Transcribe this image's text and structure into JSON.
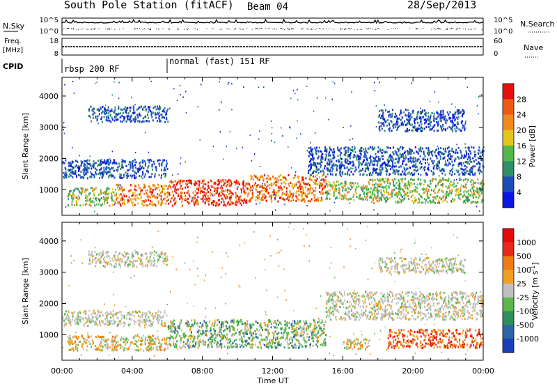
{
  "header": {
    "station_title": "South Pole Station (fitACF)",
    "beam": "Beam 04",
    "date": "28/Sep/2013"
  },
  "params_panel": {
    "left_label_nsky": "N.Sky",
    "left_tick_top": "10^5",
    "left_tick_bottom": "10^0",
    "right_tick_top": "10^5",
    "right_tick_bottom": "10^0",
    "right_label_nsearch": "N.Search",
    "freq_label_line1": "Freq.",
    "freq_label_line2": "[MHz]",
    "freq_tick_top": "18",
    "freq_tick_bottom": "8",
    "nave_tick_top": "60",
    "nave_tick_bottom": "0",
    "right_label_nave": "Nave",
    "cpid_label": "CPID",
    "cpid_segment_1": "rbsp 200 RF",
    "cpid_segment_2": "normal (fast) 151 RF"
  },
  "x_axis": {
    "label": "Time UT",
    "ticks": [
      "00:00",
      "04:00",
      "08:00",
      "12:00",
      "16:00",
      "20:00",
      "00:00"
    ]
  },
  "chart_data": [
    {
      "type": "heatmap",
      "title": "",
      "xlabel": "",
      "ylabel": "Slant Range [km]",
      "x_range_hours": [
        0,
        24
      ],
      "y_ticks": [
        1000,
        2000,
        3000,
        4000
      ],
      "ylim": [
        180,
        4600
      ],
      "colorbar": {
        "label": "Power [dB]",
        "ticks": [
          "4",
          "8",
          "12",
          "16",
          "20",
          "24",
          "28"
        ],
        "colors": [
          "#0a14e6",
          "#1d4db8",
          "#2f8f6a",
          "#52b84a",
          "#e2c51a",
          "#f08a1c",
          "#ee5a12",
          "#e80e0e"
        ]
      },
      "regions": [
        {
          "t0": 0.3,
          "t1": 3.0,
          "r0": 520,
          "r1": 1100,
          "level": "mid"
        },
        {
          "t0": 3.0,
          "t1": 6.0,
          "r0": 520,
          "r1": 1200,
          "level": "high"
        },
        {
          "t0": 6.0,
          "t1": 10.5,
          "r0": 520,
          "r1": 1350,
          "level": "peak"
        },
        {
          "t0": 10.5,
          "t1": 15.0,
          "r0": 650,
          "r1": 1500,
          "level": "high"
        },
        {
          "t0": 15.0,
          "t1": 17.5,
          "r0": 700,
          "r1": 1300,
          "level": "mid"
        },
        {
          "t0": 17.5,
          "t1": 24.0,
          "r0": 600,
          "r1": 1400,
          "level": "mid"
        },
        {
          "t0": 0.0,
          "t1": 6.0,
          "r0": 1400,
          "r1": 2000,
          "level": "low"
        },
        {
          "t0": 1.5,
          "t1": 6.0,
          "r0": 3200,
          "r1": 3700,
          "level": "low"
        },
        {
          "t0": 14.0,
          "t1": 24.0,
          "r0": 1500,
          "r1": 2400,
          "level": "low"
        },
        {
          "t0": 18.0,
          "t1": 23.0,
          "r0": 2900,
          "r1": 3600,
          "level": "low"
        }
      ]
    },
    {
      "type": "heatmap",
      "title": "",
      "xlabel": "Time UT",
      "ylabel": "Slant Range [km]",
      "x_range_hours": [
        0,
        24
      ],
      "y_ticks": [
        1000,
        2000,
        3000,
        4000
      ],
      "ylim": [
        180,
        4600
      ],
      "colorbar": {
        "label": "Velocity [m s^-1]",
        "ticks": [
          "1000",
          "500",
          "100",
          "25",
          "-25",
          "-100",
          "-500",
          "-1000"
        ],
        "colors": [
          "#1a3fb8",
          "#2a66a8",
          "#2f8f5a",
          "#5ab84a",
          "#c0c0c0",
          "#f0a020",
          "#f07a14",
          "#e8281a",
          "#e60a0a"
        ]
      },
      "regions": [
        {
          "t0": 0.3,
          "t1": 6.0,
          "r0": 520,
          "r1": 1000,
          "level": "neg-moderate"
        },
        {
          "t0": 6.0,
          "t1": 15.0,
          "r0": 600,
          "r1": 1500,
          "level": "pos-small"
        },
        {
          "t0": 16.0,
          "t1": 17.5,
          "r0": 550,
          "r1": 900,
          "level": "neg-moderate"
        },
        {
          "t0": 18.5,
          "t1": 24.0,
          "r0": 600,
          "r1": 1200,
          "level": "neg-large"
        },
        {
          "t0": 0.0,
          "t1": 6.0,
          "r0": 1300,
          "r1": 1800,
          "level": "ground"
        },
        {
          "t0": 15.0,
          "t1": 24.0,
          "r0": 1500,
          "r1": 2400,
          "level": "ground"
        },
        {
          "t0": 1.5,
          "t1": 6.0,
          "r0": 3200,
          "r1": 3700,
          "level": "ground"
        },
        {
          "t0": 18.0,
          "t1": 23.0,
          "r0": 3000,
          "r1": 3500,
          "level": "ground"
        }
      ]
    }
  ]
}
